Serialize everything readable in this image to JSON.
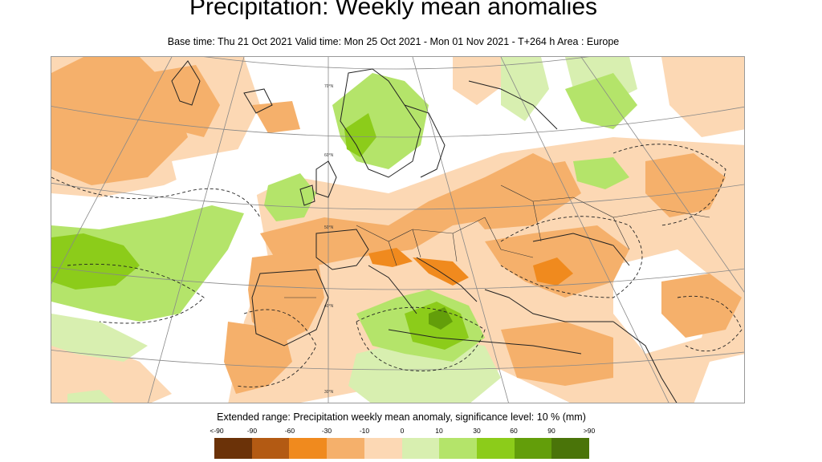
{
  "title": "Precipitation: Weekly mean anomalies",
  "subtitle": "Base time: Thu 21 Oct 2021 Valid time: Mon 25 Oct 2021 - Mon 01 Nov 2021 - T+264 h Area : Europe",
  "legend": {
    "title": "Extended range: Precipitation weekly mean anomaly, significance level: 10 % (mm)",
    "labels": [
      "<-90",
      "-90",
      "-60",
      "-30",
      "-10",
      "0",
      "10",
      "30",
      "60",
      "90",
      ">90"
    ],
    "colors": [
      "#6b3208",
      "#b35a13",
      "#f08a1e",
      "#f5b06b",
      "#fcd8b4",
      "#d8efb0",
      "#b4e46a",
      "#8ccc1a",
      "#639e0a",
      "#4a7409"
    ]
  },
  "map": {
    "graticule_labels": [
      "70°N",
      "60°N",
      "50°N",
      "40°N",
      "30°N"
    ],
    "colors": {
      "dry_light": "#fcd8b4",
      "dry_mid": "#f5b06b",
      "dry_strong": "#f08a1e",
      "wet_light": "#d8efb0",
      "wet_mid": "#b4e46a",
      "wet_strong": "#8ccc1a",
      "wet_deep": "#639e0a"
    }
  }
}
